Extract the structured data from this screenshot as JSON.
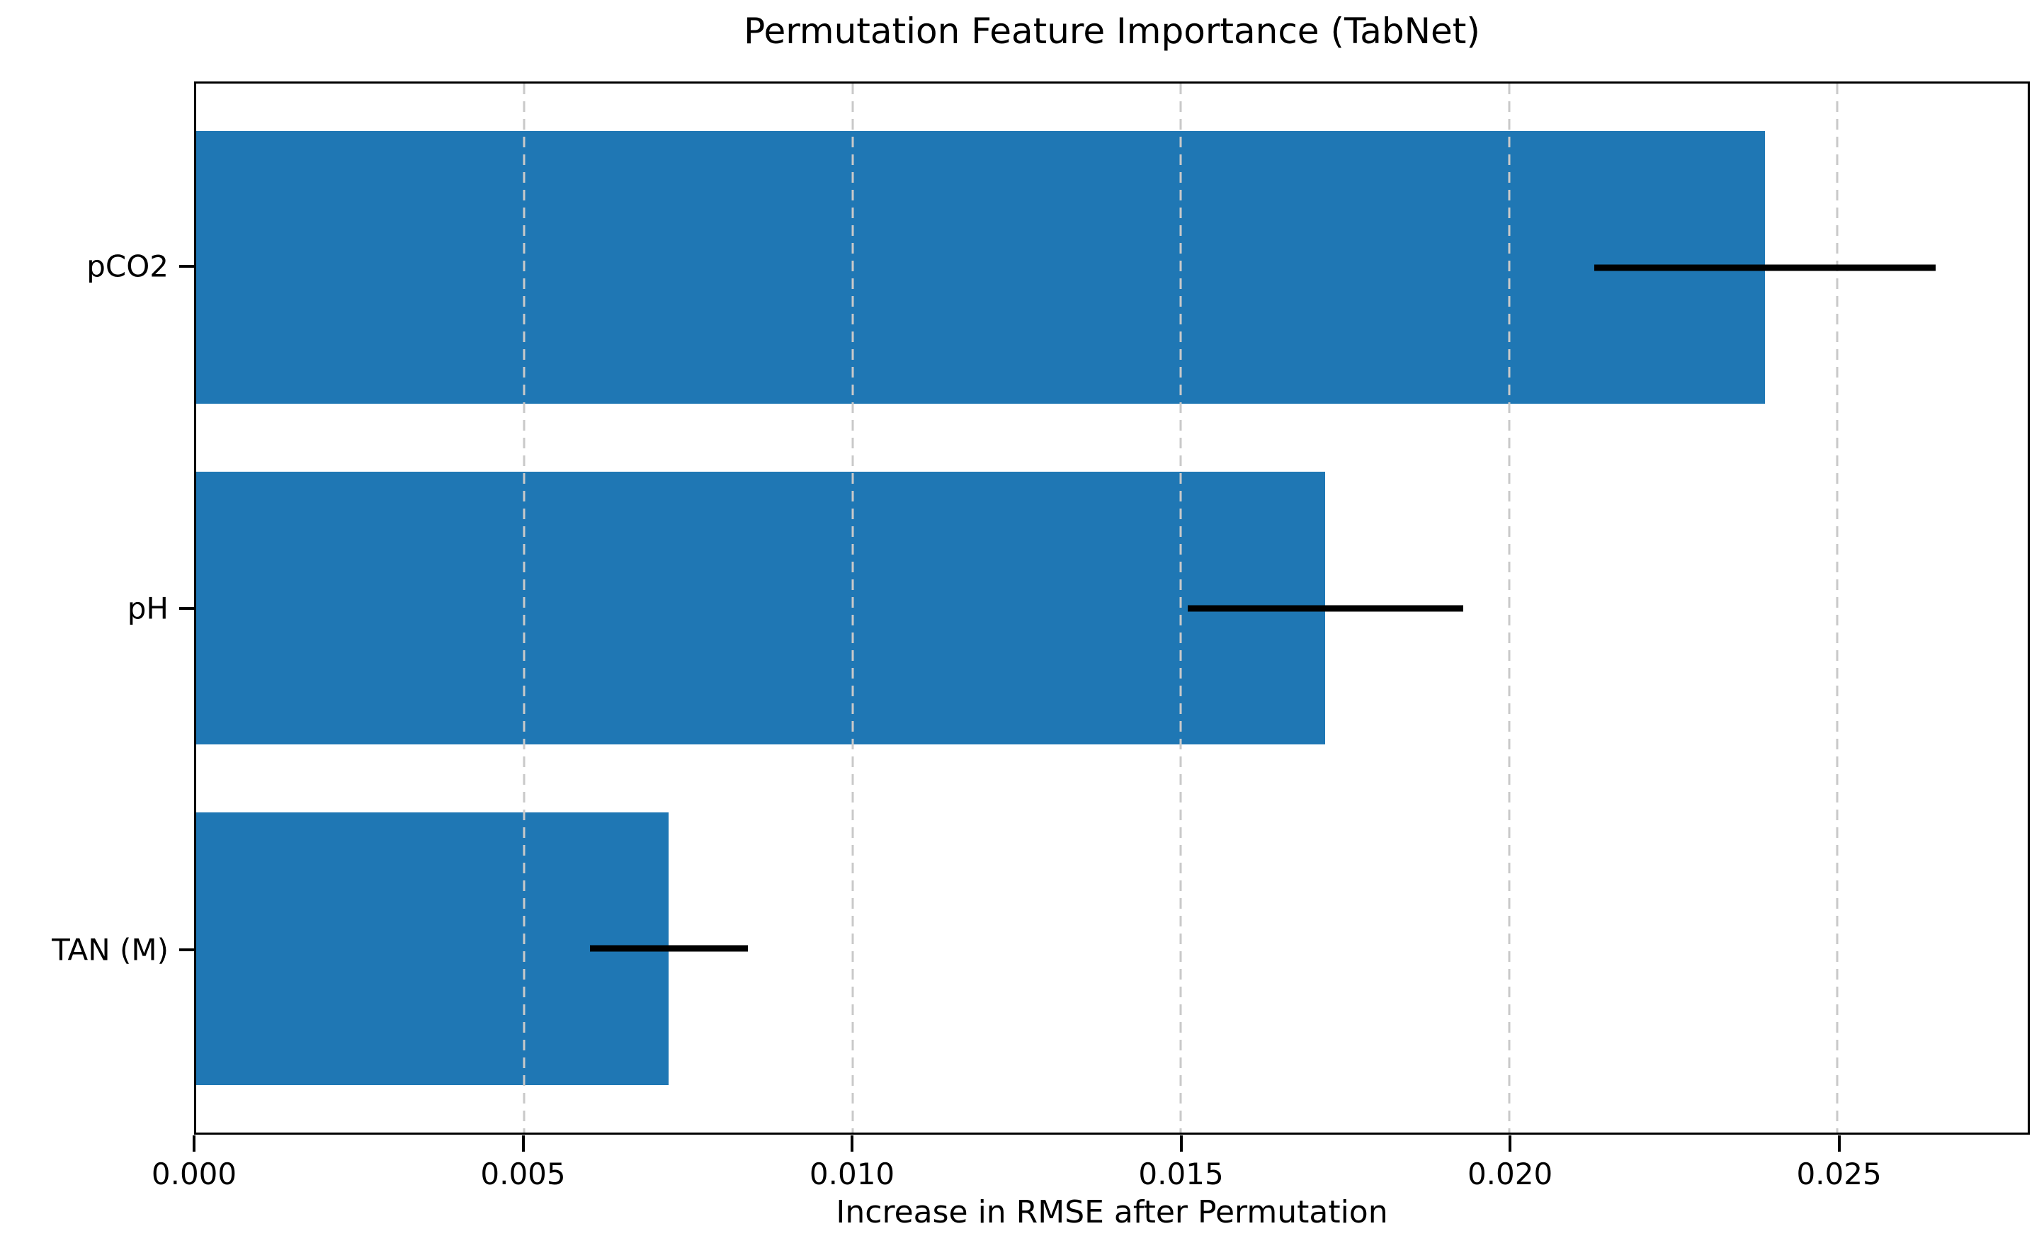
{
  "chart_data": {
    "type": "bar",
    "orientation": "horizontal",
    "title": "Permutation Feature Importance (TabNet)",
    "xlabel": "Increase in RMSE after Permutation",
    "categories": [
      "pCO2",
      "pH",
      "TAN (M)"
    ],
    "values": [
      0.0239,
      0.0172,
      0.0072
    ],
    "error_bars": [
      0.0026,
      0.0021,
      0.0012
    ],
    "xlim": [
      0,
      0.0279
    ],
    "xticks": [
      {
        "value": 0.0,
        "label": "0.000"
      },
      {
        "value": 0.005,
        "label": "0.005"
      },
      {
        "value": 0.01,
        "label": "0.010"
      },
      {
        "value": 0.015,
        "label": "0.015"
      },
      {
        "value": 0.02,
        "label": "0.020"
      },
      {
        "value": 0.025,
        "label": "0.025"
      }
    ],
    "grid": "vertical-dashed",
    "bar_color": "#1f77b4",
    "error_color": "#000000",
    "grid_color": "#c9c9c9"
  }
}
